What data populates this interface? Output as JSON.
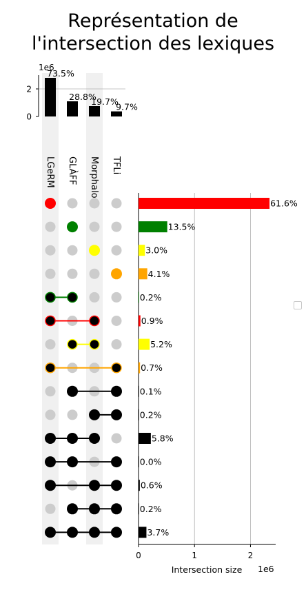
{
  "title_lines": [
    "Représentation de",
    "l'intersection des lexiques"
  ],
  "chart_data": {
    "type": "upset",
    "title": "Représentation de l'intersection des lexiques",
    "sets": [
      "LGeRM",
      "GLÀFF",
      "Morphalou",
      "TFLi"
    ],
    "set_sizes": {
      "values": [
        2800000,
        1100000,
        750000,
        370000
      ],
      "labels": [
        "73.5%",
        "28.8%",
        "19.7%",
        "9.7%"
      ],
      "ylim": [
        0,
        3000000
      ],
      "ticks": [
        0,
        2
      ],
      "scale_label": "1e6"
    },
    "intersections": [
      {
        "members": [
          0
        ],
        "value": 2340000,
        "label": "61.6%",
        "color": "#ff0000"
      },
      {
        "members": [
          1
        ],
        "value": 513000,
        "label": "13.5%",
        "color": "#008000"
      },
      {
        "members": [
          2
        ],
        "value": 114000,
        "label": "3.0%",
        "color": "#ffff00"
      },
      {
        "members": [
          3
        ],
        "value": 156000,
        "label": "4.1%",
        "color": "#ffa500"
      },
      {
        "members": [
          0,
          1
        ],
        "value": 7600,
        "label": "0.2%",
        "color": "#008000"
      },
      {
        "members": [
          0,
          2
        ],
        "value": 34000,
        "label": "0.9%",
        "color": "#ff0000"
      },
      {
        "members": [
          1,
          2
        ],
        "value": 198000,
        "label": "5.2%",
        "color": "#ffff00"
      },
      {
        "members": [
          0,
          3
        ],
        "value": 26600,
        "label": "0.7%",
        "color": "#ffa500"
      },
      {
        "members": [
          1,
          3
        ],
        "value": 3800,
        "label": "0.1%",
        "color": "#000000"
      },
      {
        "members": [
          2,
          3
        ],
        "value": 7600,
        "label": "0.2%",
        "color": "#000000"
      },
      {
        "members": [
          0,
          1,
          2
        ],
        "value": 220000,
        "label": "5.8%",
        "color": "#000000"
      },
      {
        "members": [
          0,
          1,
          3
        ],
        "value": 1000,
        "label": "0.0%",
        "color": "#000000"
      },
      {
        "members": [
          0,
          2,
          3
        ],
        "value": 22800,
        "label": "0.6%",
        "color": "#000000"
      },
      {
        "members": [
          1,
          2,
          3
        ],
        "value": 7600,
        "label": "0.2%",
        "color": "#000000"
      },
      {
        "members": [
          0,
          1,
          2,
          3
        ],
        "value": 141000,
        "label": "3.7%",
        "color": "#000000"
      }
    ],
    "xlabel": "Intersection size",
    "x_scale_label": "1e6",
    "xlim": [
      0,
      2450000
    ],
    "xticks": [
      0,
      1,
      2
    ],
    "grid": true
  }
}
